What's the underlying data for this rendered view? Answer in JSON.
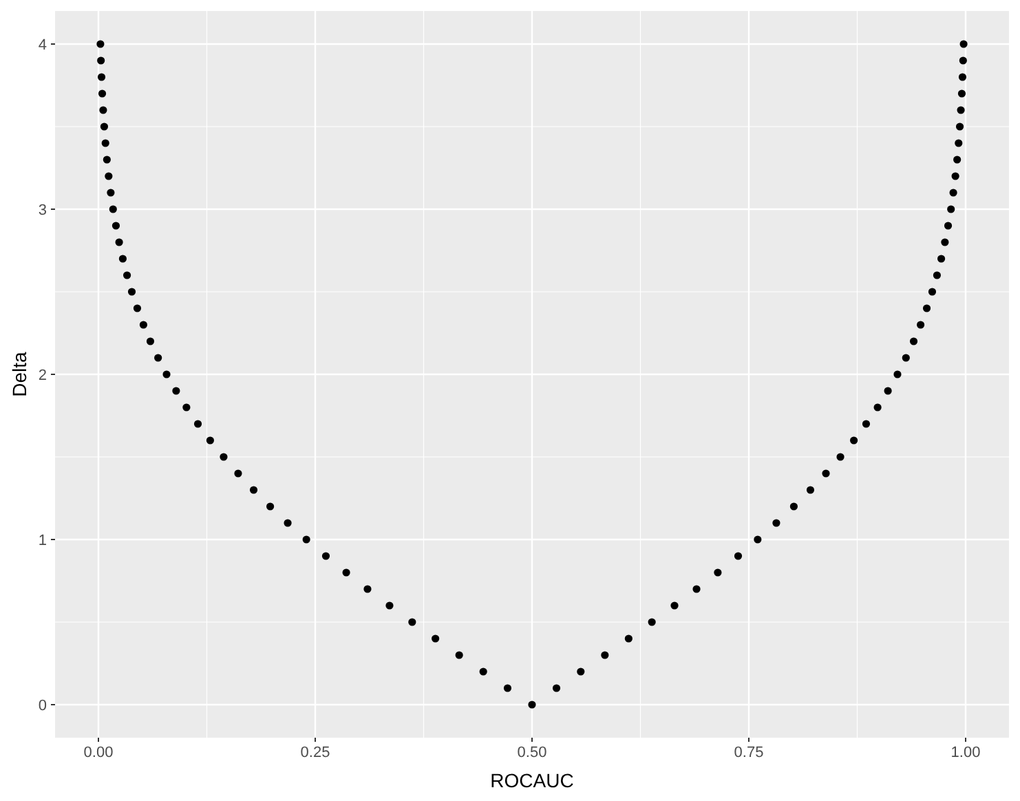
{
  "chart_data": {
    "type": "scatter",
    "xlabel": "ROCAUC",
    "ylabel": "Delta",
    "xlim": [
      -0.05,
      1.05
    ],
    "ylim": [
      -0.2,
      4.2
    ],
    "xticks": [
      {
        "value": 0,
        "label": "0.00"
      },
      {
        "value": 0.25,
        "label": "0.25"
      },
      {
        "value": 0.5,
        "label": "0.50"
      },
      {
        "value": 0.75,
        "label": "0.75"
      },
      {
        "value": 1,
        "label": "1.00"
      }
    ],
    "yticks": [
      0,
      1,
      2,
      3,
      4
    ],
    "grid": true,
    "marker": "circle",
    "series": [
      {
        "color": "#000000",
        "x": [
          0.0023,
          0.0029,
          0.0036,
          0.0044,
          0.0055,
          0.0067,
          0.0081,
          0.0098,
          0.0118,
          0.0142,
          0.0169,
          0.0202,
          0.0239,
          0.0281,
          0.033,
          0.0385,
          0.0448,
          0.0519,
          0.0599,
          0.0688,
          0.0786,
          0.0896,
          0.1015,
          0.1147,
          0.1289,
          0.1444,
          0.1611,
          0.179,
          0.1981,
          0.2183,
          0.2398,
          0.2623,
          0.2858,
          0.3103,
          0.3357,
          0.3618,
          0.3886,
          0.416,
          0.4438,
          0.4718,
          0.5,
          0.5282,
          0.5562,
          0.584,
          0.6114,
          0.6382,
          0.6643,
          0.6897,
          0.7142,
          0.7377,
          0.7602,
          0.7817,
          0.8019,
          0.821,
          0.8389,
          0.8556,
          0.8711,
          0.8853,
          0.8985,
          0.9104,
          0.9214,
          0.9312,
          0.9401,
          0.9481,
          0.9552,
          0.9615,
          0.967,
          0.9719,
          0.9761,
          0.9798,
          0.9831,
          0.9858,
          0.9882,
          0.9902,
          0.9919,
          0.9933,
          0.9945,
          0.9956,
          0.9964,
          0.9971,
          0.9977
        ],
        "values": [
          4.0,
          3.9,
          3.8,
          3.7,
          3.6,
          3.5,
          3.4,
          3.3,
          3.2,
          3.1,
          3.0,
          2.9,
          2.8,
          2.7,
          2.6,
          2.5,
          2.4,
          2.3,
          2.2,
          2.1,
          2.0,
          1.9,
          1.8,
          1.7,
          1.6,
          1.5,
          1.4,
          1.3,
          1.2,
          1.1,
          1.0,
          0.9,
          0.8,
          0.7,
          0.6,
          0.5,
          0.4,
          0.3,
          0.2,
          0.1,
          0.0,
          0.1,
          0.2,
          0.3,
          0.4,
          0.5,
          0.6,
          0.7,
          0.8,
          0.9,
          1.0,
          1.1,
          1.2,
          1.3,
          1.4,
          1.5,
          1.6,
          1.7,
          1.8,
          1.9,
          2.0,
          2.1,
          2.2,
          2.3,
          2.4,
          2.5,
          2.6,
          2.7,
          2.8,
          2.9,
          3.0,
          3.1,
          3.2,
          3.3,
          3.4,
          3.5,
          3.6,
          3.7,
          3.8,
          3.9,
          4.0
        ]
      }
    ]
  }
}
